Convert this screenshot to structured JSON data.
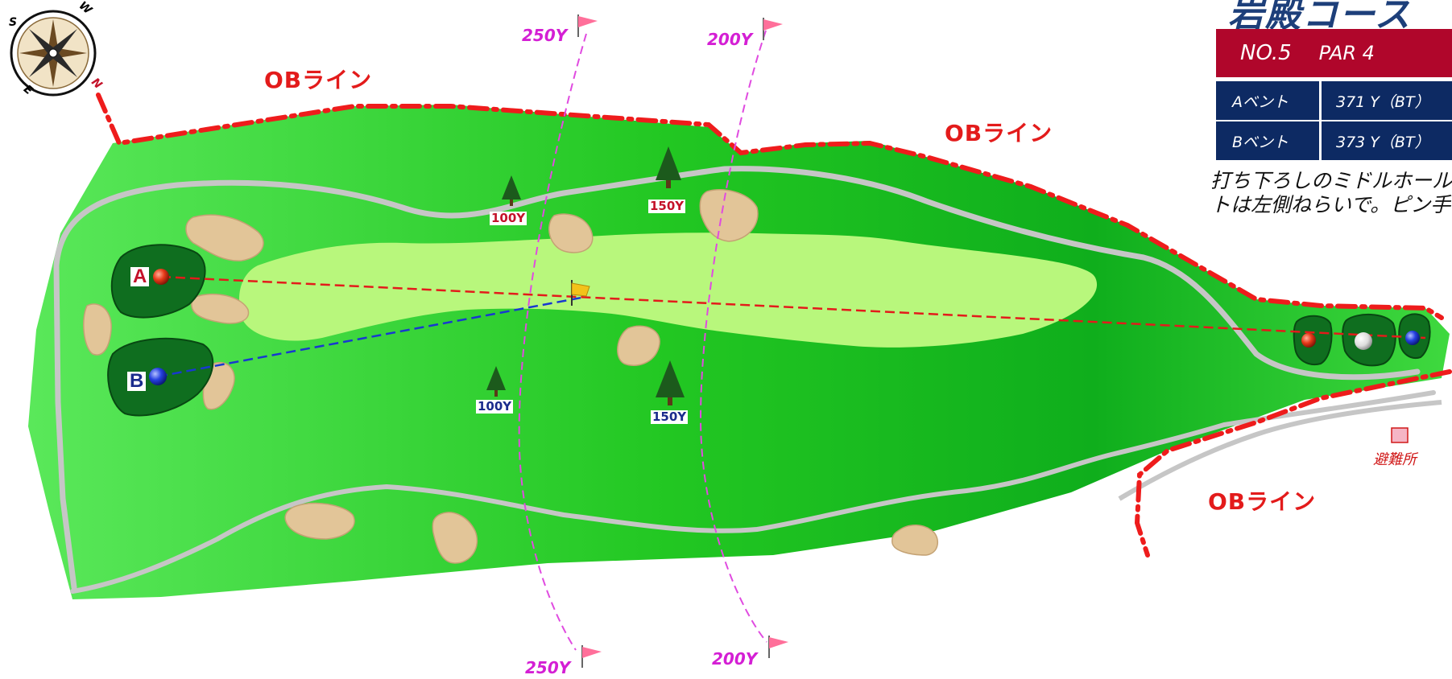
{
  "course": {
    "name": "岩殿コース",
    "hole": "NO.5",
    "par": "PAR 4",
    "tees": [
      {
        "name": "Aベント",
        "yardage": "371 Y（BT）"
      },
      {
        "name": "Bベント",
        "yardage": "373 Y（BT）"
      }
    ],
    "description_lines": [
      "打ち下ろしのミドルホール",
      "トは左側ねらいで。ピン手"
    ]
  },
  "map": {
    "ob_label": "OBライン",
    "green_a_letter": "A",
    "green_b_letter": "B",
    "shelter_label": "避難所",
    "yard_lines": {
      "top_250": "250Y",
      "top_200": "200Y",
      "bottom_250": "250Y",
      "bottom_200": "200Y"
    },
    "markers": {
      "red_100": "100Y",
      "red_150": "150Y",
      "blue_100": "100Y",
      "blue_150": "150Y"
    }
  },
  "compass": {
    "n": "N",
    "e": "E",
    "s": "S",
    "w": "W"
  },
  "colors": {
    "rough": "#22c722",
    "fairway": "#b8f77c",
    "green": "#0f6e1f",
    "bunker": "#e2c598",
    "ob": "#ee1c1c",
    "cart_path": "#c6c6c6",
    "yard_line": "#e04be0",
    "info_red": "#b0062b",
    "info_blue": "#0d2a63"
  }
}
